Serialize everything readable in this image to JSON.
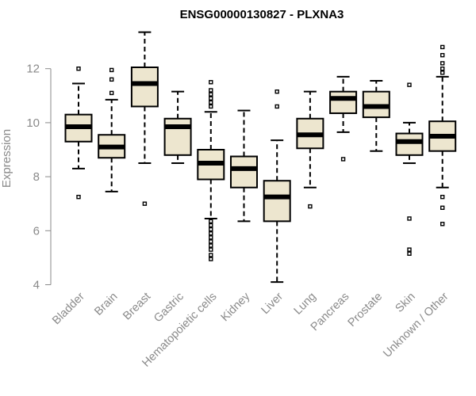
{
  "chart_data": {
    "type": "boxplot",
    "title": "ENSG00000130827 - PLXNA3",
    "xlabel": "",
    "ylabel": "Expression",
    "ylim": [
      4,
      13.5
    ],
    "yticks": [
      4,
      6,
      8,
      10,
      12
    ],
    "colors": {
      "box_fill": "#ede6cf",
      "stroke": "#000000",
      "axis": "#8a8a8a"
    },
    "categories": [
      "Bladder",
      "Brain",
      "Breast",
      "Gastric",
      "Hematopoietic cells",
      "Kidney",
      "Liver",
      "Lung",
      "Pancreas",
      "Prostate",
      "Skin",
      "Unknown / Other"
    ],
    "boxes": [
      {
        "name": "Bladder",
        "whisker_low": 8.3,
        "q1": 9.3,
        "median": 9.85,
        "q3": 10.3,
        "whisker_high": 11.45,
        "outliers": [
          7.25,
          12.0
        ]
      },
      {
        "name": "Brain",
        "whisker_low": 7.45,
        "q1": 8.7,
        "median": 9.1,
        "q3": 9.55,
        "whisker_high": 10.85,
        "outliers": [
          11.1,
          11.6,
          11.95
        ]
      },
      {
        "name": "Breast",
        "whisker_low": 8.5,
        "q1": 10.6,
        "median": 11.45,
        "q3": 12.05,
        "whisker_high": 13.35,
        "outliers": [
          7.0
        ]
      },
      {
        "name": "Gastric",
        "whisker_low": 8.5,
        "q1": 8.8,
        "median": 9.85,
        "q3": 10.15,
        "whisker_high": 11.15,
        "outliers": []
      },
      {
        "name": "Hematopoietic cells",
        "whisker_low": 6.45,
        "q1": 7.9,
        "median": 8.5,
        "q3": 9.0,
        "whisker_high": 10.4,
        "outliers": [
          4.95,
          5.1,
          5.3,
          5.45,
          5.6,
          5.75,
          5.9,
          6.05,
          6.2,
          6.35,
          10.6,
          10.75,
          10.9,
          11.05,
          11.2,
          11.5
        ]
      },
      {
        "name": "Kidney",
        "whisker_low": 6.35,
        "q1": 7.6,
        "median": 8.3,
        "q3": 8.75,
        "whisker_high": 10.45,
        "outliers": []
      },
      {
        "name": "Liver",
        "whisker_low": 4.1,
        "q1": 6.35,
        "median": 7.25,
        "q3": 7.85,
        "whisker_high": 9.35,
        "outliers": [
          10.6,
          11.15
        ]
      },
      {
        "name": "Lung",
        "whisker_low": 7.6,
        "q1": 9.05,
        "median": 9.55,
        "q3": 10.15,
        "whisker_high": 11.15,
        "outliers": [
          6.9
        ]
      },
      {
        "name": "Pancreas",
        "whisker_low": 9.65,
        "q1": 10.35,
        "median": 10.9,
        "q3": 11.15,
        "whisker_high": 11.7,
        "outliers": [
          8.65
        ]
      },
      {
        "name": "Prostate",
        "whisker_low": 8.95,
        "q1": 10.2,
        "median": 10.6,
        "q3": 11.15,
        "whisker_high": 11.55,
        "outliers": []
      },
      {
        "name": "Skin",
        "whisker_low": 8.5,
        "q1": 8.8,
        "median": 9.3,
        "q3": 9.6,
        "whisker_high": 10.0,
        "outliers": [
          5.15,
          5.3,
          6.45,
          11.4
        ]
      },
      {
        "name": "Unknown / Other",
        "whisker_low": 7.6,
        "q1": 8.95,
        "median": 9.5,
        "q3": 10.05,
        "whisker_high": 11.7,
        "outliers": [
          6.25,
          6.85,
          7.25,
          11.85,
          12.0,
          12.2,
          12.5,
          12.8
        ]
      }
    ]
  }
}
